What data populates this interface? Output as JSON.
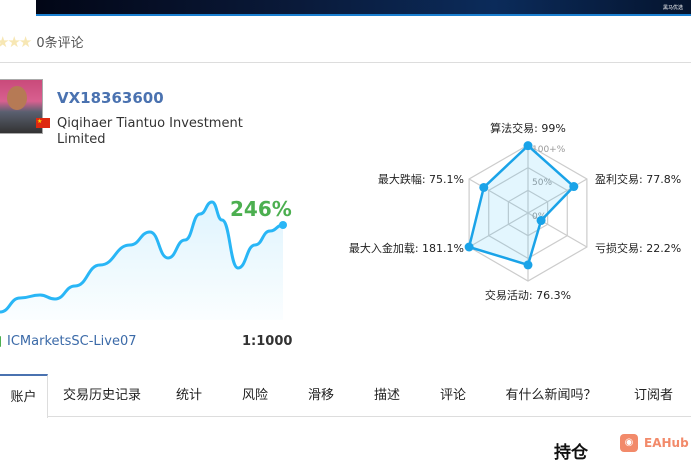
{
  "banner": {
    "caption": "黑马优选"
  },
  "rating": {
    "stars": 3,
    "reviews": "0条评论"
  },
  "profile": {
    "name": "VX18363600",
    "company": "Qiqihaer Tiantuo Investment Limited",
    "country_flag": "flag-cn-icon"
  },
  "growth": {
    "label": "246%",
    "color": "#29b6f6",
    "gain_color": "#4caf50",
    "curve": [
      0,
      14,
      17,
      13,
      26,
      47,
      67,
      80,
      54,
      72,
      98,
      110,
      92,
      44,
      67,
      81,
      87
    ]
  },
  "account": {
    "server": "ICMarketsSC-Live07",
    "leverage": "1:1000"
  },
  "radar": {
    "ring_labels": [
      "0%",
      "50%",
      "100+%"
    ],
    "axes": [
      {
        "label": "算法交易: 99%",
        "value": 99
      },
      {
        "label": "盈利交易: 77.8%",
        "value": 77.8
      },
      {
        "label": "亏损交易: 22.2%",
        "value": 22.2
      },
      {
        "label": "交易活动: 76.3%",
        "value": 76.3
      },
      {
        "label": "最大入金加载: 181.1%",
        "value": 181.1
      },
      {
        "label": "最大跌幅: 75.1%",
        "value": 75.1
      }
    ],
    "color": "#1aa3e8"
  },
  "tabs": [
    "账户",
    "交易历史记录",
    "统计",
    "风险",
    "滑移",
    "描述",
    "评论",
    "有什么新闻吗？",
    "订阅者"
  ],
  "section": {
    "title": "持仓"
  },
  "watermark": {
    "text": "EAHub"
  }
}
